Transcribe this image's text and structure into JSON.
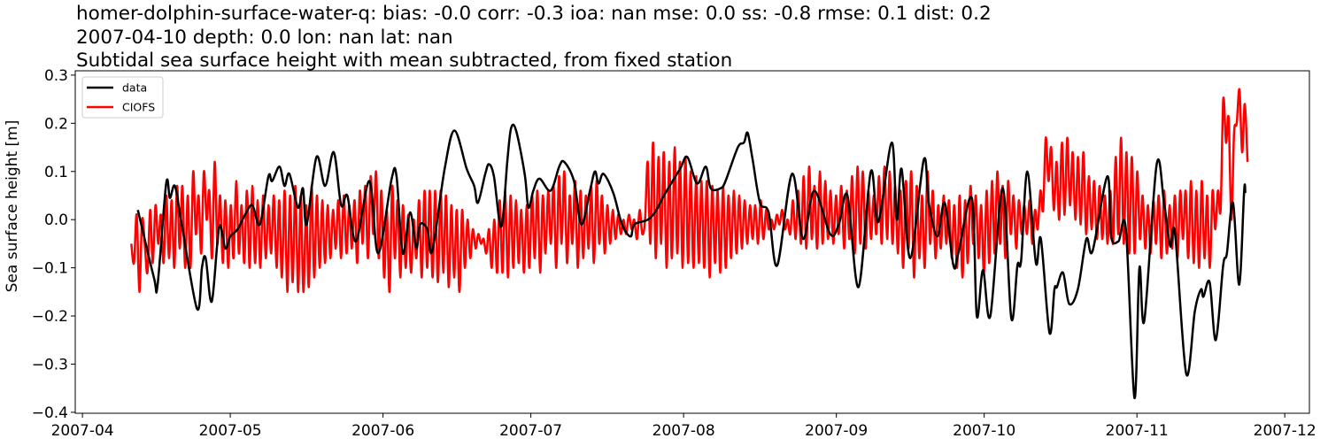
{
  "chart_data": {
    "type": "line",
    "title_lines": [
      "homer-dolphin-surface-water-q: bias: -0.0  corr: -0.3  ioa: nan  mse: 0.0  ss: -0.8  rmse: 0.1  dist: 0.2",
      "2007-04-10 depth: 0.0 lon: nan lat: nan",
      "Subtidal sea surface height with mean subtracted, from fixed station"
    ],
    "xlabel": "",
    "ylabel": "Sea surface height [m]",
    "xlim": [
      "2007-03-30T13:00",
      "2007-12-06T00:00"
    ],
    "ylim": [
      -0.402,
      0.309
    ],
    "x_ticks": [
      "2007-04",
      "2007-05",
      "2007-06",
      "2007-07",
      "2007-08",
      "2007-09",
      "2007-10",
      "2007-11",
      "2007-12"
    ],
    "y_ticks": [
      0.3,
      0.2,
      0.1,
      0.0,
      -0.1,
      -0.2,
      -0.3,
      -0.4
    ],
    "y_tick_labels": [
      "0.3",
      "0.2",
      "0.1",
      "0.0",
      "−0.1",
      "−0.2",
      "−0.3",
      "−0.4"
    ],
    "grid": false,
    "legend_position": "top-left",
    "series": [
      {
        "name": "data",
        "color": "#000000",
        "x": [
          "2007-04-12T06",
          "2007-04-15T12",
          "2007-04-16T06",
          "2007-04-18T00",
          "2007-04-18T18",
          "2007-04-19T18",
          "2007-04-21T00",
          "2007-04-24T06",
          "2007-04-25T06",
          "2007-04-26T00",
          "2007-04-27T06",
          "2007-04-28T18",
          "2007-04-30T00",
          "2007-05-01T00",
          "2007-05-02T12",
          "2007-05-04T00",
          "2007-05-05T12",
          "2007-05-07T00",
          "2007-05-08T18",
          "2007-05-09T12",
          "2007-05-11T00",
          "2007-05-12T00",
          "2007-05-13T00",
          "2007-05-14T18",
          "2007-05-15T18",
          "2007-05-16T12",
          "2007-05-18T12",
          "2007-05-20T06",
          "2007-05-22T00",
          "2007-05-23T12",
          "2007-05-24T18",
          "2007-05-26T12",
          "2007-05-29T06",
          "2007-05-31T00",
          "2007-06-02T18",
          "2007-06-03T18",
          "2007-06-05T00",
          "2007-06-06T12",
          "2007-06-07T18",
          "2007-06-08T12",
          "2007-06-10T00",
          "2007-06-11T00",
          "2007-06-13T12",
          "2007-06-15T12",
          "2007-06-18T00",
          "2007-06-19T12",
          "2007-06-20T06",
          "2007-06-21T18",
          "2007-06-22T12",
          "2007-06-23T12",
          "2007-06-25T00",
          "2007-06-26T06",
          "2007-06-27T00",
          "2007-06-28T00",
          "2007-06-29T18",
          "2007-06-30T12",
          "2007-07-01T12",
          "2007-07-02T18",
          "2007-07-05T00",
          "2007-07-06T18",
          "2007-07-07T18",
          "2007-07-09T18",
          "2007-07-11T06",
          "2007-07-13T00",
          "2007-07-14T00",
          "2007-07-14T18",
          "2007-07-15T18",
          "2007-07-17T18",
          "2007-07-19T12",
          "2007-07-21T06",
          "2007-07-22T00",
          "2007-07-24T18",
          "2007-07-26T12",
          "2007-07-28T00",
          "2007-07-31T06",
          "2007-08-01T18",
          "2007-08-03T18",
          "2007-08-05T12",
          "2007-08-06T12",
          "2007-08-08T12",
          "2007-08-09T12",
          "2007-08-12T00",
          "2007-08-13T06",
          "2007-08-14T00",
          "2007-08-15T00",
          "2007-08-16T12",
          "2007-08-18T06",
          "2007-08-20T00",
          "2007-08-23T00",
          "2007-08-25T06",
          "2007-08-27T12",
          "2007-08-30T18",
          "2007-09-01T12",
          "2007-09-03T06",
          "2007-09-05T12",
          "2007-09-08T00",
          "2007-09-09T12",
          "2007-09-12T06",
          "2007-09-13T06",
          "2007-09-14T06",
          "2007-09-16T00",
          "2007-09-18T18",
          "2007-09-19T18",
          "2007-09-21T12",
          "2007-09-23T00",
          "2007-09-24T18",
          "2007-09-25T18",
          "2007-09-28T12",
          "2007-09-29T12",
          "2007-09-30T18",
          "2007-10-02T06",
          "2007-10-04T18",
          "2007-10-06T12",
          "2007-10-07T18",
          "2007-10-08T12",
          "2007-10-09T18",
          "2007-10-11T12",
          "2007-10-12T12",
          "2007-10-14T06",
          "2007-10-15T06",
          "2007-10-15T18",
          "2007-10-17T00",
          "2007-10-18T06",
          "2007-10-20T00",
          "2007-10-21T18",
          "2007-10-23T00",
          "2007-10-26T00",
          "2007-10-26T18",
          "2007-10-28T06",
          "2007-10-29T18",
          "2007-10-31T12",
          "2007-11-01T12",
          "2007-11-02T12",
          "2007-11-05T00",
          "2007-11-06T12",
          "2007-11-07T18",
          "2007-11-08T18",
          "2007-11-11T00",
          "2007-11-12T18",
          "2007-11-14T00",
          "2007-11-14T12",
          "2007-11-15T18",
          "2007-11-17T00",
          "2007-11-18T12",
          "2007-11-19T06",
          "2007-11-20T12",
          "2007-11-21T18",
          "2007-11-22T18",
          "2007-11-23T00"
        ],
        "y": [
          0.02,
          -0.12,
          -0.135,
          0.075,
          0.045,
          0.07,
          0.0,
          -0.185,
          -0.1,
          -0.08,
          -0.17,
          -0.015,
          -0.06,
          -0.035,
          -0.02,
          0.01,
          0.03,
          -0.01,
          0.09,
          0.08,
          0.11,
          0.07,
          0.095,
          0.025,
          0.065,
          -0.01,
          0.13,
          0.07,
          0.14,
          0.03,
          0.05,
          -0.045,
          0.08,
          -0.07,
          0.085,
          0.09,
          -0.07,
          0.015,
          -0.06,
          -0.01,
          -0.02,
          -0.065,
          0.105,
          0.185,
          0.105,
          0.07,
          0.035,
          0.095,
          0.115,
          0.09,
          -0.015,
          0.125,
          0.19,
          0.185,
          0.095,
          0.025,
          0.06,
          0.085,
          0.06,
          0.11,
          0.12,
          0.08,
          -0.01,
          0.06,
          0.1,
          0.075,
          0.095,
          0.055,
          -0.01,
          -0.035,
          -0.01,
          0.0,
          0.02,
          0.05,
          0.105,
          0.13,
          0.075,
          0.11,
          0.065,
          0.065,
          0.08,
          0.15,
          0.16,
          0.18,
          0.125,
          0.035,
          0.015,
          -0.095,
          0.095,
          -0.04,
          0.06,
          -0.03,
          -0.01,
          0.05,
          -0.14,
          0.1,
          -0.005,
          0.16,
          0.0,
          0.105,
          -0.08,
          0.125,
          0.035,
          -0.035,
          0.035,
          -0.095,
          -0.07,
          0.045,
          -0.2,
          -0.105,
          -0.2,
          0.065,
          -0.205,
          -0.095,
          -0.085,
          0.1,
          -0.09,
          -0.04,
          -0.235,
          -0.145,
          -0.14,
          -0.11,
          -0.175,
          -0.145,
          -0.04,
          -0.065,
          0.09,
          -0.035,
          -0.045,
          -0.02,
          -0.37,
          -0.1,
          -0.21,
          0.115,
          0.035,
          -0.055,
          -0.03,
          -0.32,
          -0.19,
          -0.145,
          -0.16,
          -0.13,
          -0.25,
          -0.095,
          -0.07,
          0.035,
          -0.135,
          0.06,
          0.055
        ]
      },
      {
        "name": "CIOFS",
        "color": "#ff0000",
        "start": "2007-04-10T22:00",
        "interval_hours": 13.1,
        "y": [
          -0.05,
          -0.09,
          0.01,
          -0.15,
          0.0,
          -0.05,
          -0.11,
          0.02,
          -0.09,
          0.03,
          -0.05,
          0.01,
          -0.09,
          0.05,
          -0.08,
          0.04,
          -0.1,
          0.07,
          -0.06,
          0.07,
          -0.1,
          0.05,
          -0.1,
          0.1,
          -0.03,
          0.05,
          -0.07,
          0.1,
          0.0,
          0.06,
          -0.08,
          0.12,
          -0.05,
          0.05,
          -0.09,
          0.04,
          -0.1,
          0.03,
          -0.08,
          0.08,
          -0.07,
          0.03,
          -0.09,
          0.06,
          -0.1,
          0.07,
          -0.09,
          0.04,
          -0.1,
          0.05,
          -0.08,
          0.03,
          -0.07,
          0.05,
          -0.1,
          0.04,
          -0.12,
          0.06,
          -0.15,
          0.05,
          -0.13,
          0.07,
          -0.15,
          0.05,
          -0.15,
          0.03,
          -0.14,
          0.07,
          -0.12,
          0.05,
          -0.1,
          0.04,
          -0.09,
          0.03,
          -0.08,
          0.02,
          -0.06,
          0.04,
          -0.08,
          0.05,
          -0.07,
          0.03,
          -0.06,
          0.04,
          -0.09,
          0.06,
          -0.05,
          0.07,
          -0.08,
          0.09,
          -0.03,
          0.1,
          -0.08,
          0.06,
          -0.12,
          0.02,
          -0.15,
          0.07,
          -0.08,
          0.04,
          -0.12,
          0.03,
          -0.1,
          0.01,
          -0.11,
          0.0,
          -0.08,
          0.04,
          -0.12,
          0.06,
          -0.1,
          0.06,
          -0.12,
          0.06,
          -0.13,
          0.06,
          -0.11,
          0.05,
          -0.14,
          0.03,
          -0.12,
          0.02,
          -0.15,
          0.02,
          -0.1,
          0.0,
          -0.08,
          -0.02,
          -0.06,
          -0.03,
          -0.05,
          -0.04,
          -0.07,
          -0.02,
          -0.1,
          0.0,
          -0.11,
          0.04,
          -0.11,
          0.06,
          -0.12,
          0.05,
          -0.1,
          0.04,
          -0.09,
          0.02,
          -0.11,
          0.03,
          -0.1,
          0.05,
          -0.08,
          0.06,
          -0.11,
          0.05,
          -0.07,
          0.06,
          -0.05,
          0.07,
          -0.1,
          0.09,
          -0.05,
          0.1,
          -0.09,
          0.05,
          -0.05,
          0.08,
          -0.1,
          0.06,
          -0.08,
          0.05,
          -0.06,
          0.07,
          -0.09,
          0.08,
          -0.05,
          0.05,
          -0.07,
          0.03,
          -0.05,
          0.02,
          -0.04,
          0.01,
          -0.03,
          0.0,
          -0.03,
          0.01,
          -0.02,
          0.0,
          -0.04,
          0.02,
          -0.03,
          0.0,
          0.12,
          -0.05,
          0.16,
          -0.08,
          0.13,
          -0.05,
          0.14,
          -0.1,
          0.12,
          -0.08,
          0.15,
          -0.07,
          0.12,
          -0.1,
          0.13,
          -0.09,
          0.1,
          -0.1,
          0.09,
          -0.09,
          0.08,
          -0.1,
          0.08,
          -0.12,
          0.07,
          -0.09,
          0.06,
          -0.11,
          0.07,
          -0.1,
          0.05,
          -0.08,
          0.06,
          -0.07,
          0.05,
          -0.06,
          0.04,
          -0.05,
          0.03,
          -0.04,
          0.03,
          -0.05,
          0.04,
          -0.04,
          0.02,
          -0.02,
          0.0,
          -0.02,
          0.01,
          -0.01,
          0.02,
          -0.02,
          0.0,
          -0.03,
          0.04,
          -0.04,
          0.06,
          -0.05,
          0.09,
          -0.06,
          0.11,
          -0.04,
          0.07,
          -0.06,
          0.1,
          -0.05,
          0.08,
          -0.04,
          0.06,
          -0.05,
          0.05,
          -0.03,
          0.07,
          -0.06,
          0.06,
          -0.04,
          0.09,
          -0.07,
          0.11,
          -0.05,
          0.1,
          -0.06,
          0.06,
          -0.04,
          0.05,
          -0.03,
          0.09,
          -0.05,
          0.11,
          -0.04,
          0.1,
          -0.05,
          0.07,
          -0.07,
          0.06,
          -0.1,
          0.08,
          -0.06,
          0.1,
          -0.12,
          0.07,
          -0.08,
          0.05,
          -0.1,
          0.1,
          -0.05,
          0.06,
          -0.08,
          0.03,
          -0.06,
          0.05,
          -0.05,
          0.04,
          -0.08,
          0.03,
          -0.1,
          0.05,
          -0.12,
          0.04,
          -0.09,
          0.07,
          -0.05,
          0.05,
          -0.08,
          0.03,
          -0.11,
          0.06,
          -0.09,
          0.08,
          -0.07,
          0.1,
          -0.05,
          0.07,
          -0.08,
          0.08,
          -0.03,
          0.05,
          -0.06,
          0.04,
          -0.03,
          0.03,
          -0.03,
          0.04,
          -0.05,
          0.02,
          -0.02,
          0.06,
          0.02,
          0.17,
          0.08,
          0.15,
          0.02,
          0.12,
          0.0,
          0.16,
          0.01,
          0.17,
          0.03,
          0.14,
          0.0,
          0.13,
          -0.01,
          0.14,
          -0.03,
          0.09,
          -0.02,
          0.08,
          -0.04,
          0.07,
          -0.04,
          0.05,
          -0.05,
          0.06,
          -0.05,
          0.13,
          -0.03,
          0.17,
          -0.05,
          0.14,
          -0.07,
          0.13,
          -0.07,
          0.1,
          -0.04,
          0.05,
          -0.06,
          0.03,
          -0.07,
          0.04,
          -0.05,
          0.05,
          -0.08,
          0.06,
          -0.07,
          0.03,
          -0.06,
          0.05,
          -0.08,
          0.06,
          -0.04,
          0.06,
          -0.08,
          0.08,
          -0.09,
          0.06,
          -0.1,
          0.08,
          -0.08,
          0.05,
          -0.1,
          0.06,
          -0.02,
          0.06,
          0.02,
          0.25,
          0.16,
          0.21,
          0.0,
          0.18,
          0.2,
          0.27,
          0.14,
          0.24,
          0.12
        ]
      }
    ]
  }
}
